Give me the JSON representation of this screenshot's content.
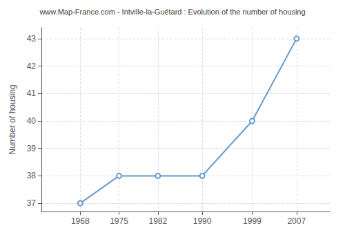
{
  "chart_data": {
    "type": "line",
    "title": "www.Map-France.com - Intville-la-Guétard : Evolution of the number of housing",
    "ylabel": "Number of housing",
    "x": [
      1968,
      1975,
      1982,
      1990,
      1999,
      2007
    ],
    "values": [
      37,
      38,
      38,
      38,
      40,
      43
    ],
    "xlim": [
      1961,
      2013
    ],
    "ylim": [
      36.7,
      43.4
    ],
    "xticks": [
      1968,
      1975,
      1982,
      1990,
      1999,
      2007
    ],
    "yticks": [
      37,
      38,
      39,
      40,
      41,
      42,
      43
    ],
    "color": "#6699cc",
    "marker": "circle",
    "grid": true
  }
}
